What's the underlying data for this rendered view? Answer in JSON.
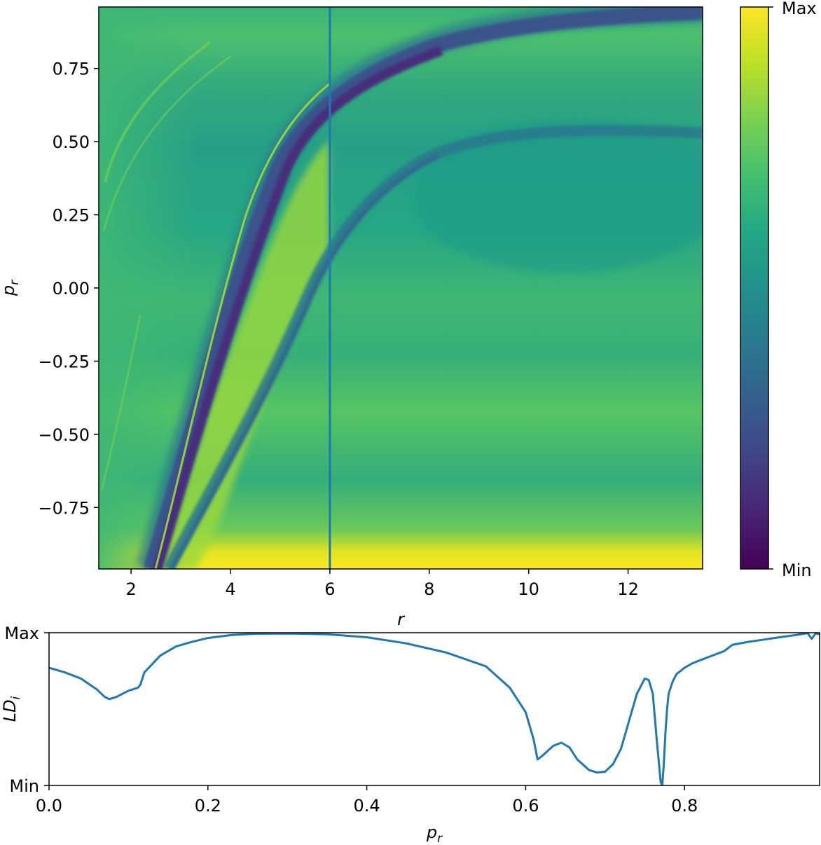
{
  "chart_data": [
    {
      "type": "heatmap",
      "xlabel": "r",
      "ylabel": "p_r",
      "xlim": [
        1.35,
        13.5
      ],
      "ylim": [
        -0.96,
        0.96
      ],
      "xticks": [
        2,
        4,
        6,
        8,
        10,
        12
      ],
      "xtick_labels": [
        "2",
        "4",
        "6",
        "8",
        "10",
        "12"
      ],
      "yticks": [
        0.75,
        0.5,
        0.25,
        0.0,
        -0.25,
        -0.5,
        -0.75
      ],
      "ytick_labels": [
        "0.75",
        "0.50",
        "0.25",
        "0.00",
        "−0.25",
        "−0.50",
        "−0.75"
      ],
      "colormap": "viridis",
      "colorbar": {
        "max_label": "Max",
        "min_label": "Min"
      },
      "vertical_line": {
        "x": 6,
        "color": "#1f77b4"
      },
      "features": [
        {
          "name": "low-valley-upper",
          "shape": "sigmoid ridge",
          "passes_through": [
            [
              3.0,
              -0.9
            ],
            [
              4.5,
              0.25
            ],
            [
              6.0,
              0.72
            ],
            [
              8.0,
              0.88
            ]
          ]
        },
        {
          "name": "low-valley-lower",
          "shape": "sigmoid ridge",
          "passes_through": [
            [
              3.2,
              -0.8
            ],
            [
              5.0,
              -0.3
            ],
            [
              6.0,
              0.1
            ],
            [
              8.0,
              0.4
            ]
          ]
        },
        {
          "name": "high-band-bottom",
          "p_r_range": [
            -0.96,
            -0.88
          ]
        }
      ]
    },
    {
      "type": "line",
      "xlabel": "p_r",
      "ylabel": "LD_i",
      "xlim": [
        0.0,
        0.97
      ],
      "ylim": [
        0,
        1
      ],
      "xticks": [
        0.0,
        0.2,
        0.4,
        0.6,
        0.8
      ],
      "xtick_labels": [
        "0.0",
        "0.2",
        "0.4",
        "0.6",
        "0.8"
      ],
      "ytick_labels": {
        "max": "Max",
        "min": "Min"
      },
      "color": "#1f77b4",
      "x": [
        0.0,
        0.02,
        0.04,
        0.06,
        0.07,
        0.076,
        0.085,
        0.1,
        0.112,
        0.115,
        0.12,
        0.14,
        0.16,
        0.18,
        0.2,
        0.23,
        0.26,
        0.3,
        0.35,
        0.4,
        0.45,
        0.5,
        0.55,
        0.58,
        0.6,
        0.61,
        0.615,
        0.62,
        0.635,
        0.645,
        0.655,
        0.665,
        0.68,
        0.69,
        0.7,
        0.71,
        0.72,
        0.73,
        0.74,
        0.75,
        0.755,
        0.76,
        0.765,
        0.77,
        0.772,
        0.774,
        0.776,
        0.778,
        0.78,
        0.785,
        0.79,
        0.8,
        0.81,
        0.82,
        0.83,
        0.84,
        0.85,
        0.855,
        0.86,
        0.88,
        0.9,
        0.92,
        0.94,
        0.955,
        0.96,
        0.965,
        0.97
      ],
      "y": [
        0.77,
        0.74,
        0.7,
        0.63,
        0.58,
        0.565,
        0.58,
        0.62,
        0.64,
        0.66,
        0.74,
        0.85,
        0.91,
        0.94,
        0.965,
        0.985,
        0.993,
        0.995,
        0.99,
        0.97,
        0.93,
        0.87,
        0.78,
        0.64,
        0.48,
        0.3,
        0.17,
        0.19,
        0.26,
        0.28,
        0.25,
        0.17,
        0.1,
        0.085,
        0.09,
        0.14,
        0.24,
        0.42,
        0.6,
        0.7,
        0.69,
        0.6,
        0.3,
        0.02,
        0.0,
        0.15,
        0.35,
        0.5,
        0.6,
        0.68,
        0.73,
        0.77,
        0.8,
        0.82,
        0.84,
        0.86,
        0.88,
        0.9,
        0.92,
        0.94,
        0.955,
        0.97,
        0.985,
        0.997,
        0.96,
        0.995,
        0.99
      ]
    }
  ]
}
